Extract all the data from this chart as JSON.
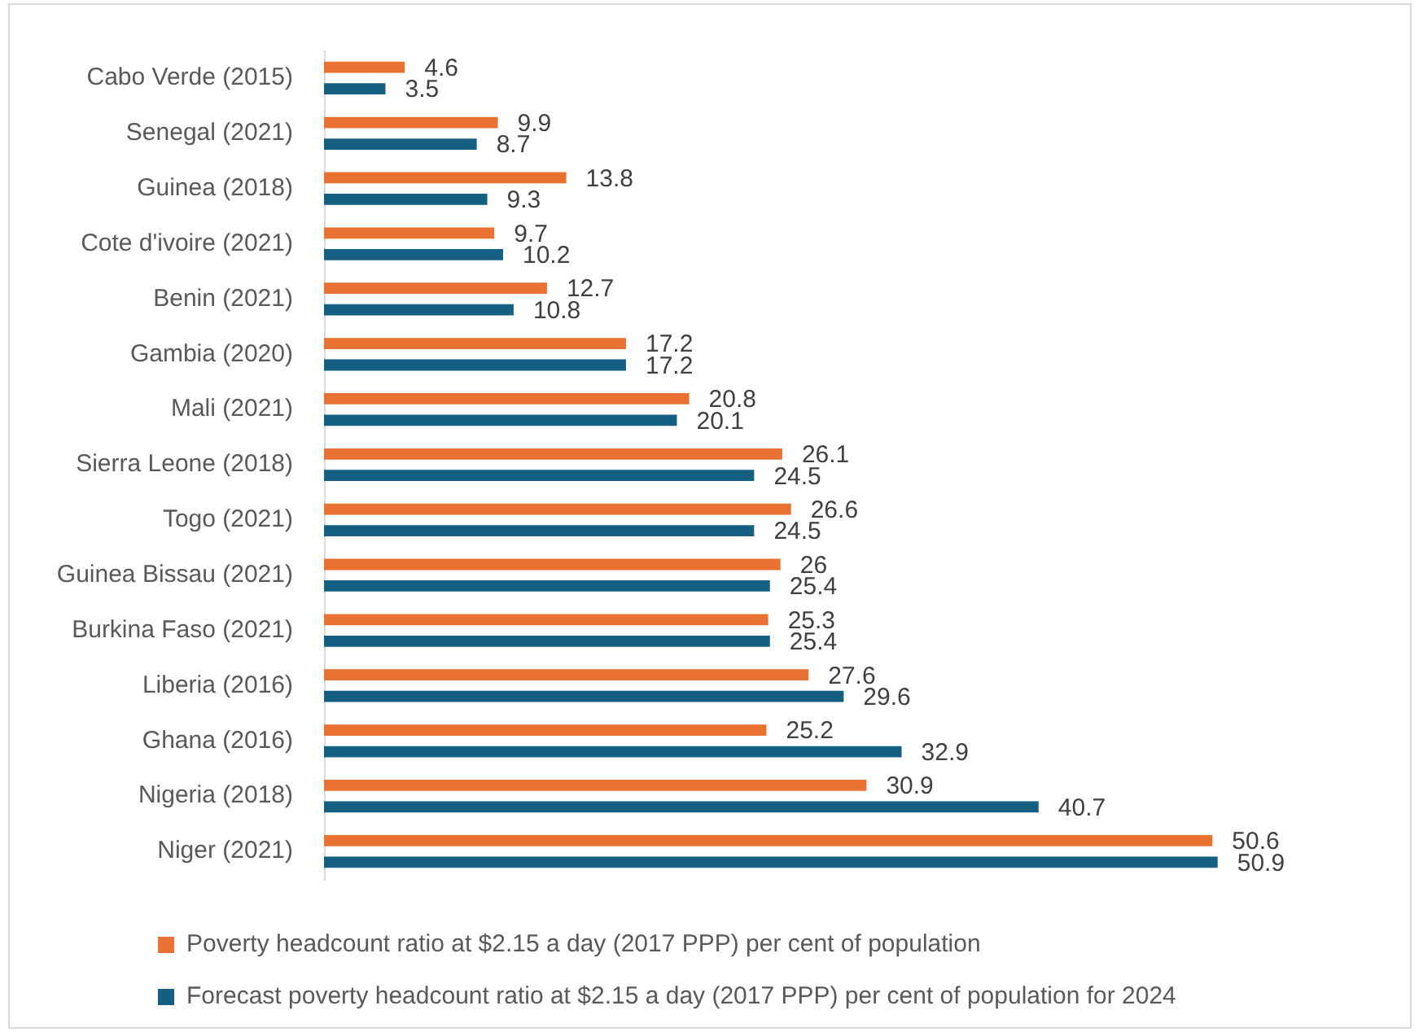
{
  "chart_data": {
    "type": "bar",
    "orientation": "horizontal",
    "categories": [
      "Cabo Verde (2015)",
      "Senegal (2021)",
      "Guinea (2018)",
      "Cote d'ivoire (2021)",
      "Benin (2021)",
      "Gambia (2020)",
      "Mali (2021)",
      "Sierra Leone (2018)",
      "Togo (2021)",
      "Guinea Bissau (2021)",
      "Burkina Faso (2021)",
      "Liberia (2016)",
      "Ghana (2016)",
      "Nigeria (2018)",
      "Niger (2021)"
    ],
    "series": [
      {
        "name": "Poverty headcount ratio at $2.15 a day (2017 PPP) per cent of population",
        "color": "#e97132",
        "values": [
          4.6,
          9.9,
          13.8,
          9.7,
          12.7,
          17.2,
          20.8,
          26.1,
          26.6,
          26,
          25.3,
          27.6,
          25.2,
          30.9,
          50.6
        ]
      },
      {
        "name": "Forecast poverty headcount ratio at $2.15 a day (2017 PPP) per cent of population for 2024",
        "color": "#156082",
        "values": [
          3.5,
          8.7,
          9.3,
          10.2,
          10.8,
          17.2,
          20.1,
          24.5,
          24.5,
          25.4,
          25.4,
          29.6,
          32.9,
          40.7,
          50.9
        ]
      }
    ],
    "data_labels": true,
    "legend": "bottom left"
  }
}
